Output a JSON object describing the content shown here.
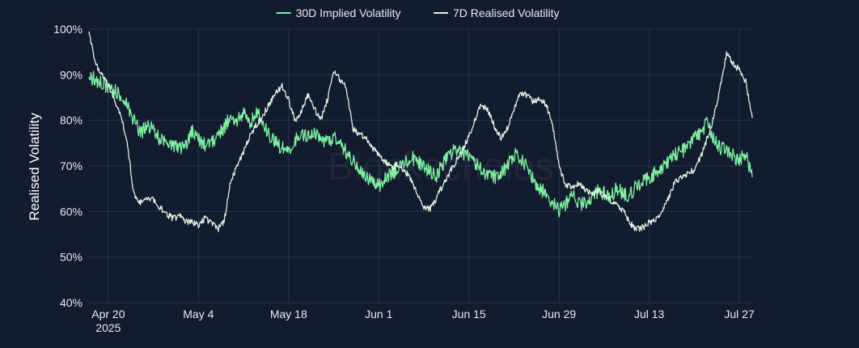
{
  "chart_data": {
    "type": "line",
    "title": "",
    "xlabel": "",
    "ylabel": "Realised Volatility",
    "x_ticks": [
      {
        "date": "2025-04-20",
        "label": "Apr 20",
        "sublabel": "2025"
      },
      {
        "date": "2025-05-04",
        "label": "May 4"
      },
      {
        "date": "2025-05-18",
        "label": "May 18"
      },
      {
        "date": "2025-06-01",
        "label": "Jun 1"
      },
      {
        "date": "2025-06-15",
        "label": "Jun 15"
      },
      {
        "date": "2025-06-29",
        "label": "Jun 29"
      },
      {
        "date": "2025-07-13",
        "label": "Jul 13"
      },
      {
        "date": "2025-07-27",
        "label": "Jul 27"
      }
    ],
    "xlim": [
      "2025-04-17",
      "2025-07-29"
    ],
    "ylim": [
      40,
      100
    ],
    "y_ticks": [
      "40%",
      "50%",
      "60%",
      "70%",
      "80%",
      "90%",
      "100%"
    ],
    "y_tick_values": [
      40,
      50,
      60,
      70,
      80,
      90,
      100
    ],
    "grid": true,
    "legend_position": "top-center",
    "watermark": "Blockscholes",
    "series": [
      {
        "name": "30D Implied Volatility",
        "color": "#7ef0a0",
        "points": [
          [
            "2025-04-17",
            89.5
          ],
          [
            "2025-04-18",
            89.0
          ],
          [
            "2025-04-19",
            88.0
          ],
          [
            "2025-04-20",
            87.5
          ],
          [
            "2025-04-21",
            86.5
          ],
          [
            "2025-04-22",
            85.0
          ],
          [
            "2025-04-23",
            83.0
          ],
          [
            "2025-04-24",
            80.0
          ],
          [
            "2025-04-25",
            77.0
          ],
          [
            "2025-04-26",
            79.0
          ],
          [
            "2025-04-27",
            78.0
          ],
          [
            "2025-04-28",
            76.0
          ],
          [
            "2025-04-29",
            75.0
          ],
          [
            "2025-04-30",
            74.5
          ],
          [
            "2025-05-01",
            73.5
          ],
          [
            "2025-05-02",
            74.5
          ],
          [
            "2025-05-03",
            77.5
          ],
          [
            "2025-05-04",
            76.0
          ],
          [
            "2025-05-05",
            74.5
          ],
          [
            "2025-05-06",
            75.5
          ],
          [
            "2025-05-07",
            76.5
          ],
          [
            "2025-05-08",
            78.5
          ],
          [
            "2025-05-09",
            81.0
          ],
          [
            "2025-05-10",
            80.0
          ],
          [
            "2025-05-11",
            81.5
          ],
          [
            "2025-05-12",
            79.0
          ],
          [
            "2025-05-13",
            82.0
          ],
          [
            "2025-05-14",
            79.5
          ],
          [
            "2025-05-15",
            76.5
          ],
          [
            "2025-05-16",
            75.0
          ],
          [
            "2025-05-17",
            74.0
          ],
          [
            "2025-05-18",
            73.5
          ],
          [
            "2025-05-19",
            75.5
          ],
          [
            "2025-05-20",
            77.0
          ],
          [
            "2025-05-21",
            76.0
          ],
          [
            "2025-05-22",
            77.5
          ],
          [
            "2025-05-23",
            76.0
          ],
          [
            "2025-05-24",
            75.0
          ],
          [
            "2025-05-25",
            76.5
          ],
          [
            "2025-05-26",
            75.0
          ],
          [
            "2025-05-27",
            73.0
          ],
          [
            "2025-05-28",
            71.0
          ],
          [
            "2025-05-29",
            69.0
          ],
          [
            "2025-05-30",
            68.0
          ],
          [
            "2025-05-31",
            66.5
          ],
          [
            "2025-06-01",
            65.5
          ],
          [
            "2025-06-02",
            67.0
          ],
          [
            "2025-06-03",
            68.5
          ],
          [
            "2025-06-04",
            69.5
          ],
          [
            "2025-06-05",
            70.5
          ],
          [
            "2025-06-06",
            72.0
          ],
          [
            "2025-06-07",
            71.0
          ],
          [
            "2025-06-08",
            70.0
          ],
          [
            "2025-06-09",
            68.5
          ],
          [
            "2025-06-10",
            68.0
          ],
          [
            "2025-06-11",
            70.5
          ],
          [
            "2025-06-12",
            72.5
          ],
          [
            "2025-06-13",
            73.5
          ],
          [
            "2025-06-14",
            73.0
          ],
          [
            "2025-06-15",
            72.0
          ],
          [
            "2025-06-16",
            70.5
          ],
          [
            "2025-06-17",
            69.0
          ],
          [
            "2025-06-18",
            68.0
          ],
          [
            "2025-06-19",
            67.5
          ],
          [
            "2025-06-20",
            68.5
          ],
          [
            "2025-06-21",
            70.0
          ],
          [
            "2025-06-22",
            72.5
          ],
          [
            "2025-06-23",
            71.5
          ],
          [
            "2025-06-24",
            69.5
          ],
          [
            "2025-06-25",
            67.0
          ],
          [
            "2025-06-26",
            65.0
          ],
          [
            "2025-06-27",
            64.0
          ],
          [
            "2025-06-28",
            62.0
          ],
          [
            "2025-06-29",
            60.0
          ],
          [
            "2025-06-30",
            61.5
          ],
          [
            "2025-07-01",
            63.5
          ],
          [
            "2025-07-02",
            62.0
          ],
          [
            "2025-07-03",
            61.5
          ],
          [
            "2025-07-04",
            63.0
          ],
          [
            "2025-07-05",
            64.5
          ],
          [
            "2025-07-06",
            64.0
          ],
          [
            "2025-07-07",
            63.5
          ],
          [
            "2025-07-08",
            65.0
          ],
          [
            "2025-07-09",
            64.0
          ],
          [
            "2025-07-10",
            63.5
          ],
          [
            "2025-07-11",
            65.5
          ],
          [
            "2025-07-12",
            66.5
          ],
          [
            "2025-07-13",
            67.5
          ],
          [
            "2025-07-14",
            68.5
          ],
          [
            "2025-07-15",
            69.5
          ],
          [
            "2025-07-16",
            71.0
          ],
          [
            "2025-07-17",
            72.5
          ],
          [
            "2025-07-18",
            73.0
          ],
          [
            "2025-07-19",
            74.5
          ],
          [
            "2025-07-20",
            76.0
          ],
          [
            "2025-07-21",
            77.5
          ],
          [
            "2025-07-22",
            79.5
          ],
          [
            "2025-07-23",
            76.0
          ],
          [
            "2025-07-24",
            74.0
          ],
          [
            "2025-07-25",
            73.5
          ],
          [
            "2025-07-26",
            72.5
          ],
          [
            "2025-07-27",
            71.0
          ],
          [
            "2025-07-28",
            73.0
          ],
          [
            "2025-07-29",
            67.5
          ]
        ]
      },
      {
        "name": "7D Realised Volatility",
        "color": "#d6f5e0",
        "points": [
          [
            "2025-04-17",
            99.5
          ],
          [
            "2025-04-18",
            92.5
          ],
          [
            "2025-04-19",
            90.0
          ],
          [
            "2025-04-20",
            88.0
          ],
          [
            "2025-04-21",
            84.0
          ],
          [
            "2025-04-22",
            81.0
          ],
          [
            "2025-04-23",
            74.5
          ],
          [
            "2025-04-24",
            63.5
          ],
          [
            "2025-04-25",
            62.0
          ],
          [
            "2025-04-26",
            63.0
          ],
          [
            "2025-04-27",
            62.5
          ],
          [
            "2025-04-28",
            61.0
          ],
          [
            "2025-04-29",
            59.5
          ],
          [
            "2025-04-30",
            58.5
          ],
          [
            "2025-05-01",
            59.0
          ],
          [
            "2025-05-02",
            58.0
          ],
          [
            "2025-05-03",
            57.5
          ],
          [
            "2025-05-04",
            57.0
          ],
          [
            "2025-05-05",
            58.5
          ],
          [
            "2025-05-06",
            57.5
          ],
          [
            "2025-05-07",
            56.0
          ],
          [
            "2025-05-08",
            58.0
          ],
          [
            "2025-05-09",
            66.5
          ],
          [
            "2025-05-10",
            70.0
          ],
          [
            "2025-05-11",
            73.0
          ],
          [
            "2025-05-12",
            76.5
          ],
          [
            "2025-05-13",
            79.0
          ],
          [
            "2025-05-14",
            81.0
          ],
          [
            "2025-05-15",
            83.5
          ],
          [
            "2025-05-16",
            86.0
          ],
          [
            "2025-05-17",
            87.5
          ],
          [
            "2025-05-18",
            84.5
          ],
          [
            "2025-05-19",
            80.0
          ],
          [
            "2025-05-20",
            82.0
          ],
          [
            "2025-05-21",
            85.5
          ],
          [
            "2025-05-22",
            82.5
          ],
          [
            "2025-05-23",
            80.0
          ],
          [
            "2025-05-24",
            84.5
          ],
          [
            "2025-05-25",
            90.5
          ],
          [
            "2025-05-26",
            89.0
          ],
          [
            "2025-05-27",
            87.0
          ],
          [
            "2025-05-28",
            78.0
          ],
          [
            "2025-05-29",
            77.0
          ],
          [
            "2025-05-30",
            76.0
          ],
          [
            "2025-05-31",
            74.0
          ],
          [
            "2025-06-01",
            72.5
          ],
          [
            "2025-06-02",
            71.0
          ],
          [
            "2025-06-03",
            69.5
          ],
          [
            "2025-06-04",
            70.5
          ],
          [
            "2025-06-05",
            69.0
          ],
          [
            "2025-06-06",
            67.0
          ],
          [
            "2025-06-07",
            64.0
          ],
          [
            "2025-06-08",
            61.0
          ],
          [
            "2025-06-09",
            60.5
          ],
          [
            "2025-06-10",
            63.0
          ],
          [
            "2025-06-11",
            66.0
          ],
          [
            "2025-06-12",
            68.5
          ],
          [
            "2025-06-13",
            71.0
          ],
          [
            "2025-06-14",
            73.5
          ],
          [
            "2025-06-15",
            76.5
          ],
          [
            "2025-06-16",
            80.5
          ],
          [
            "2025-06-17",
            83.5
          ],
          [
            "2025-06-18",
            82.0
          ],
          [
            "2025-06-19",
            78.5
          ],
          [
            "2025-06-20",
            76.0
          ],
          [
            "2025-06-21",
            78.5
          ],
          [
            "2025-06-22",
            82.5
          ],
          [
            "2025-06-23",
            86.0
          ],
          [
            "2025-06-24",
            85.5
          ],
          [
            "2025-06-25",
            84.0
          ],
          [
            "2025-06-26",
            84.5
          ],
          [
            "2025-06-27",
            83.5
          ],
          [
            "2025-06-28",
            79.0
          ],
          [
            "2025-06-29",
            70.0
          ],
          [
            "2025-06-30",
            66.0
          ],
          [
            "2025-07-01",
            65.0
          ],
          [
            "2025-07-02",
            66.0
          ],
          [
            "2025-07-03",
            65.0
          ],
          [
            "2025-07-04",
            64.0
          ],
          [
            "2025-07-05",
            64.5
          ],
          [
            "2025-07-06",
            63.5
          ],
          [
            "2025-07-07",
            62.5
          ],
          [
            "2025-07-08",
            61.5
          ],
          [
            "2025-07-09",
            60.0
          ],
          [
            "2025-07-10",
            57.5
          ],
          [
            "2025-07-11",
            56.0
          ],
          [
            "2025-07-12",
            56.5
          ],
          [
            "2025-07-13",
            57.5
          ],
          [
            "2025-07-14",
            58.0
          ],
          [
            "2025-07-15",
            60.0
          ],
          [
            "2025-07-16",
            63.0
          ],
          [
            "2025-07-17",
            66.5
          ],
          [
            "2025-07-18",
            67.5
          ],
          [
            "2025-07-19",
            68.5
          ],
          [
            "2025-07-20",
            69.0
          ],
          [
            "2025-07-21",
            72.0
          ],
          [
            "2025-07-22",
            76.0
          ],
          [
            "2025-07-23",
            80.5
          ],
          [
            "2025-07-24",
            87.0
          ],
          [
            "2025-07-25",
            94.5
          ],
          [
            "2025-07-26",
            92.5
          ],
          [
            "2025-07-27",
            91.0
          ],
          [
            "2025-07-28",
            88.5
          ],
          [
            "2025-07-29",
            80.5
          ]
        ]
      }
    ]
  }
}
